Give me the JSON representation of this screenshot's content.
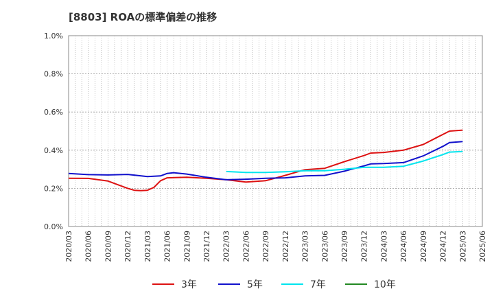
{
  "chart_data": {
    "type": "line",
    "title": "[8803]  ROAの標準偏差の推移",
    "xlabel": "",
    "ylabel": "",
    "ylim": [
      0,
      1.0
    ],
    "y_ticks": [
      "0.0%",
      "0.2%",
      "0.4%",
      "0.6%",
      "0.8%",
      "1.0%"
    ],
    "x": [
      "2020/03",
      "2020/06",
      "2020/09",
      "2020/12",
      "2021/03",
      "2021/06",
      "2021/09",
      "2021/12",
      "2022/03",
      "2022/06",
      "2022/09",
      "2022/12",
      "2023/03",
      "2023/06",
      "2023/09",
      "2023/12",
      "2024/03",
      "2024/06",
      "2024/09",
      "2024/12",
      "2025/03",
      "2025/06"
    ],
    "grid": true,
    "legend_position": "bottom",
    "series": [
      {
        "name": "3年",
        "color": "#dd1111",
        "points": [
          [
            "2020/03",
            0.253
          ],
          [
            "2020/06",
            0.252
          ],
          [
            "2020/09",
            0.238
          ],
          [
            "2020/12",
            0.2
          ],
          [
            "2021/01",
            0.19
          ],
          [
            "2021/02",
            0.188
          ],
          [
            "2021/03",
            0.19
          ],
          [
            "2021/04",
            0.205
          ],
          [
            "2021/05",
            0.24
          ],
          [
            "2021/06",
            0.255
          ],
          [
            "2021/09",
            0.258
          ],
          [
            "2021/12",
            0.253
          ],
          [
            "2022/03",
            0.245
          ],
          [
            "2022/06",
            0.233
          ],
          [
            "2022/09",
            0.24
          ],
          [
            "2022/12",
            0.268
          ],
          [
            "2023/03",
            0.298
          ],
          [
            "2023/06",
            0.305
          ],
          [
            "2023/09",
            0.34
          ],
          [
            "2023/12",
            0.372
          ],
          [
            "2024/01",
            0.385
          ],
          [
            "2024/03",
            0.388
          ],
          [
            "2024/06",
            0.4
          ],
          [
            "2024/09",
            0.43
          ],
          [
            "2024/11",
            0.465
          ],
          [
            "2025/01",
            0.5
          ],
          [
            "2025/03",
            0.505
          ]
        ]
      },
      {
        "name": "5年",
        "color": "#1111cc",
        "points": [
          [
            "2020/03",
            0.278
          ],
          [
            "2020/06",
            0.272
          ],
          [
            "2020/09",
            0.27
          ],
          [
            "2020/12",
            0.273
          ],
          [
            "2021/03",
            0.262
          ],
          [
            "2021/05",
            0.265
          ],
          [
            "2021/06",
            0.278
          ],
          [
            "2021/07",
            0.282
          ],
          [
            "2021/09",
            0.275
          ],
          [
            "2021/12",
            0.258
          ],
          [
            "2022/03",
            0.245
          ],
          [
            "2022/06",
            0.248
          ],
          [
            "2022/09",
            0.253
          ],
          [
            "2022/12",
            0.255
          ],
          [
            "2023/03",
            0.265
          ],
          [
            "2023/06",
            0.268
          ],
          [
            "2023/09",
            0.29
          ],
          [
            "2023/12",
            0.318
          ],
          [
            "2024/01",
            0.328
          ],
          [
            "2024/03",
            0.33
          ],
          [
            "2024/06",
            0.335
          ],
          [
            "2024/09",
            0.37
          ],
          [
            "2024/12",
            0.42
          ],
          [
            "2025/01",
            0.44
          ],
          [
            "2025/03",
            0.445
          ]
        ]
      },
      {
        "name": "7年",
        "color": "#00e5ee",
        "points": [
          [
            "2022/03",
            0.288
          ],
          [
            "2022/06",
            0.283
          ],
          [
            "2022/09",
            0.283
          ],
          [
            "2022/12",
            0.287
          ],
          [
            "2023/03",
            0.292
          ],
          [
            "2023/06",
            0.292
          ],
          [
            "2023/09",
            0.3
          ],
          [
            "2023/12",
            0.31
          ],
          [
            "2024/03",
            0.31
          ],
          [
            "2024/06",
            0.316
          ],
          [
            "2024/09",
            0.343
          ],
          [
            "2024/12",
            0.377
          ],
          [
            "2025/01",
            0.39
          ],
          [
            "2025/03",
            0.393
          ]
        ]
      },
      {
        "name": "10年",
        "color": "#228822",
        "points": []
      }
    ]
  }
}
